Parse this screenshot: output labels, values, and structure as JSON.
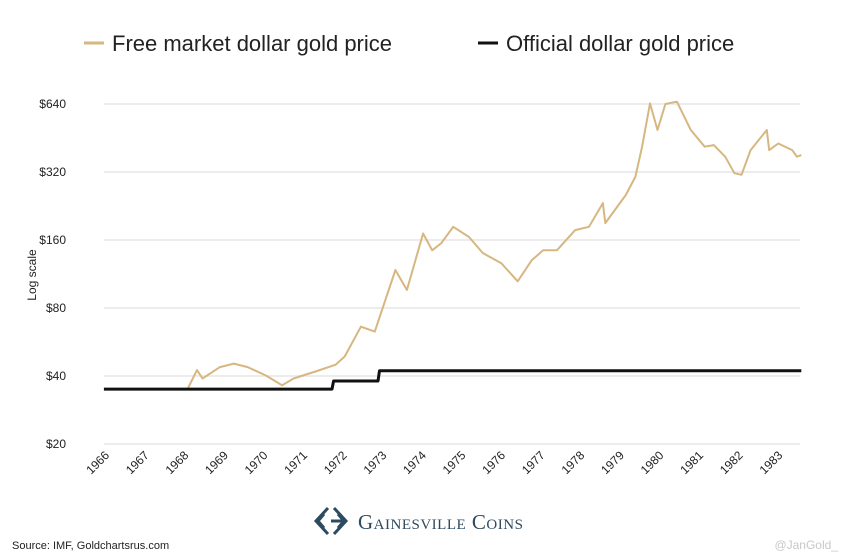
{
  "chart_data": {
    "type": "line",
    "title": "",
    "xlabel": "",
    "ylabel": "Log scale",
    "y_scale": "log2",
    "ylim": [
      20,
      640
    ],
    "xlim": [
      1966,
      1984
    ],
    "grid": true,
    "legend_position": "top",
    "x_ticks": [
      "1966",
      "1967",
      "1968",
      "1969",
      "1970",
      "1971",
      "1972",
      "1973",
      "1974",
      "1975",
      "1976",
      "1977",
      "1978",
      "1979",
      "1980",
      "1981",
      "1982",
      "1983"
    ],
    "y_ticks": [
      {
        "value": 20,
        "label": "$20"
      },
      {
        "value": 40,
        "label": "$40"
      },
      {
        "value": 80,
        "label": "$80"
      },
      {
        "value": 160,
        "label": "$160"
      },
      {
        "value": 320,
        "label": "$320"
      },
      {
        "value": 640,
        "label": "$640"
      }
    ],
    "series": [
      {
        "name": "Free market dollar gold price",
        "color": "#d6b781",
        "points": [
          [
            1968.32,
            35.3
          ],
          [
            1968.55,
            42.5
          ],
          [
            1968.69,
            39.0
          ],
          [
            1969.13,
            43.8
          ],
          [
            1969.48,
            45.4
          ],
          [
            1969.83,
            43.8
          ],
          [
            1970.29,
            40.2
          ],
          [
            1970.7,
            36.4
          ],
          [
            1970.99,
            39.0
          ],
          [
            1971.58,
            42.1
          ],
          [
            1972.05,
            44.9
          ],
          [
            1972.28,
            48.8
          ],
          [
            1972.69,
            66.1
          ],
          [
            1973.04,
            62.9
          ],
          [
            1973.56,
            117.8
          ],
          [
            1973.85,
            96.1
          ],
          [
            1974.26,
            171
          ],
          [
            1974.49,
            144
          ],
          [
            1974.72,
            155
          ],
          [
            1975.02,
            183
          ],
          [
            1975.42,
            165
          ],
          [
            1975.77,
            140
          ],
          [
            1976.24,
            126
          ],
          [
            1976.65,
            105
          ],
          [
            1977.0,
            130
          ],
          [
            1977.29,
            144
          ],
          [
            1977.64,
            144
          ],
          [
            1978.1,
            177
          ],
          [
            1978.45,
            183
          ],
          [
            1978.8,
            233
          ],
          [
            1978.86,
            190
          ],
          [
            1979.38,
            253
          ],
          [
            1979.62,
            305
          ],
          [
            1979.79,
            414
          ],
          [
            1979.99,
            644
          ],
          [
            1980.18,
            491
          ],
          [
            1980.38,
            640
          ],
          [
            1980.67,
            655
          ],
          [
            1981.02,
            491
          ],
          [
            1981.37,
            414
          ],
          [
            1981.6,
            421
          ],
          [
            1981.89,
            374
          ],
          [
            1982.12,
            316
          ],
          [
            1982.3,
            311
          ],
          [
            1982.53,
            400
          ],
          [
            1982.94,
            491
          ],
          [
            1983.0,
            400
          ],
          [
            1983.23,
            428
          ],
          [
            1983.58,
            400
          ],
          [
            1983.7,
            374
          ],
          [
            1983.81,
            380
          ]
        ]
      },
      {
        "name": "Official dollar gold price",
        "color": "#111111",
        "points": [
          [
            1966.2,
            35
          ],
          [
            1971.96,
            35
          ],
          [
            1972.0,
            38
          ],
          [
            1973.12,
            38
          ],
          [
            1973.16,
            42.22
          ],
          [
            1983.81,
            42.22
          ]
        ]
      }
    ]
  },
  "source": "Source: IMF, Goldchartsrus.com",
  "logo": {
    "text": "Gainesville Coins"
  },
  "watermark": "@JanGold_"
}
